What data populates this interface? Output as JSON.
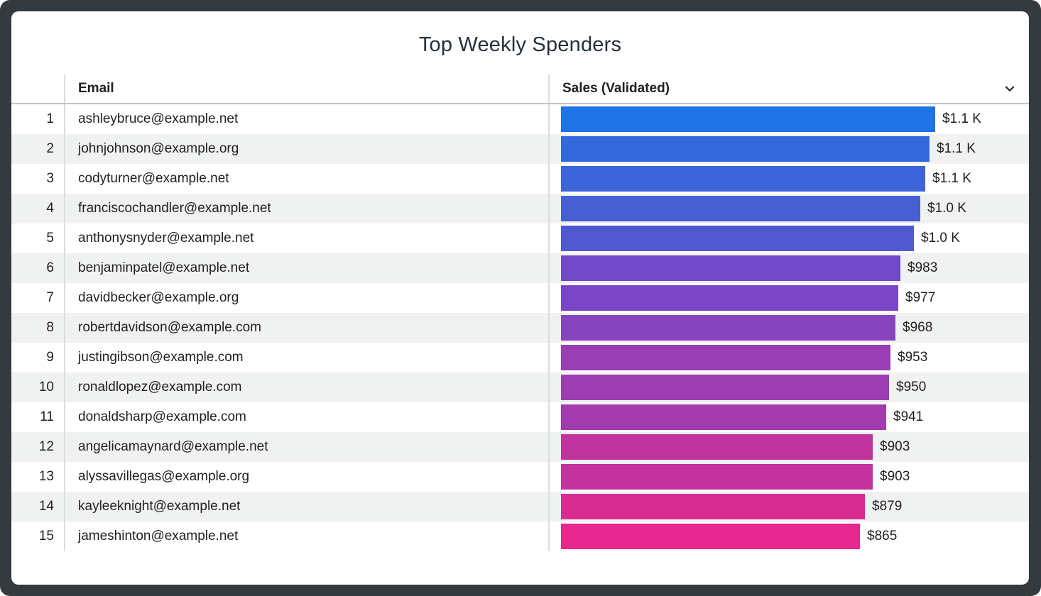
{
  "title": "Top Weekly Spenders",
  "header": {
    "rank_label": "",
    "email_label": "Email",
    "sales_label": "Sales (Validated)",
    "sales_menu_icon": "chevron-down-icon"
  },
  "colors": {
    "frame_background": "#343a3d",
    "card_background": "#ffffff",
    "stripe": "#f0f1f1",
    "divider": "#dbdddd",
    "header_underline": "#c2c5c7",
    "text": "#202124",
    "title_text": "#25303c",
    "gradient_start": "#1e74e4",
    "gradient_end": "#e8278f"
  },
  "chart_data": {
    "type": "bar",
    "orientation": "horizontal",
    "title": "Top Weekly Spenders",
    "xlabel": "Sales (Validated)",
    "ylabel": "Email",
    "legend": "none",
    "grid": "off",
    "value_axis_range": [
      0,
      1083
    ],
    "categories": [
      "ashleybruce@example.net",
      "johnjohnson@example.org",
      "codyturner@example.net",
      "franciscochandler@example.net",
      "anthonysnyder@example.net",
      "benjaminpatel@example.net",
      "davidbecker@example.org",
      "robertdavidson@example.com",
      "justingibson@example.com",
      "ronaldlopez@example.com",
      "donaldsharp@example.com",
      "angelicamaynard@example.net",
      "alyssavillegas@example.org",
      "kayleeknight@example.net",
      "jameshinton@example.net"
    ],
    "ranks": [
      1,
      2,
      3,
      4,
      5,
      6,
      7,
      8,
      9,
      10,
      11,
      12,
      13,
      14,
      15
    ],
    "values": [
      1083,
      1066,
      1055,
      1040,
      1021,
      983,
      977,
      968,
      953,
      950,
      941,
      903,
      903,
      879,
      865
    ],
    "value_labels": [
      "$1.1 K",
      "$1.1 K",
      "$1.1 K",
      "$1.0 K",
      "$1.0 K",
      "$983",
      "$977",
      "$968",
      "$953",
      "$950",
      "$941",
      "$903",
      "$903",
      "$879",
      "$865"
    ],
    "bar_colors": [
      "#1e74e4",
      "#3368dc",
      "#3d64d8",
      "#4660d4",
      "#4f58d1",
      "#7049c8",
      "#7846c4",
      "#8745bd",
      "#9a3eb4",
      "#9d3db2",
      "#a33aae",
      "#c1339f",
      "#c2339e",
      "#d92c92",
      "#e8278f"
    ]
  }
}
